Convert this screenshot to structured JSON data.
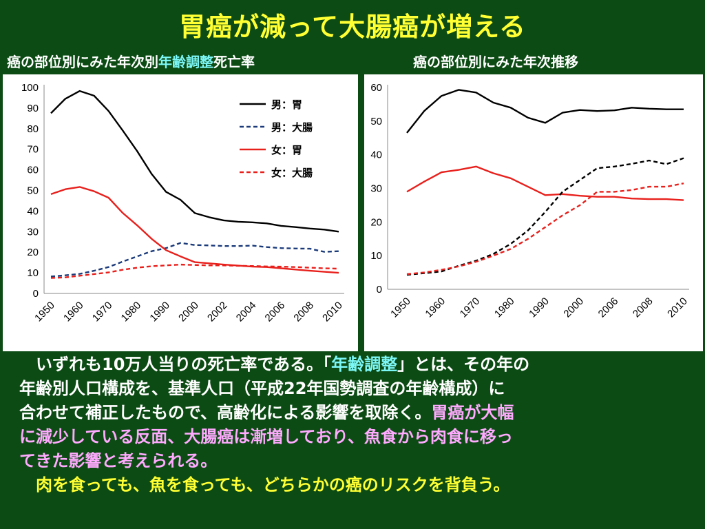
{
  "title": "胃癌が減って大腸癌が増える",
  "subtitle_left": {
    "prefix": "癌の部位別にみた年次別",
    "highlight": "年齢調整",
    "suffix": "死亡率"
  },
  "subtitle_right": "癌の部位別にみた年次推移",
  "body": {
    "line1": {
      "indent": "　",
      "a": "いずれも10万人当りの死亡率である。「",
      "b": "年齢調整",
      "c": "」とは、その年の"
    },
    "line2": "年齢別人口構成を、基準人口（平成22年国勢調査の年齢構成）に",
    "line3": {
      "a": "合わせて補正したもので、高齢化による影響を取除く。",
      "b": "胃癌が大幅"
    },
    "line4": "に減少している反面、大腸癌は漸増しており、魚食から肉食に移っ",
    "line5": "てきた影響と考えられる。",
    "line6": "　肉を食っても、魚を食っても、どちらかの癌のリスクを背負う。"
  },
  "colors": {
    "male": "#000000",
    "female": "#e8201c"
  },
  "chart_data": [
    {
      "type": "line",
      "x": [
        "1950",
        "1955",
        "1960",
        "1965",
        "1970",
        "1975",
        "1980",
        "1985",
        "1990",
        "1995",
        "2000",
        "2001",
        "2002",
        "2003",
        "2004",
        "2005",
        "2006",
        "2007",
        "2008",
        "2009",
        "2010"
      ],
      "xticks": [
        "1950",
        "1960",
        "1970",
        "1980",
        "1990",
        "2000",
        "2002",
        "2004",
        "2006",
        "2008",
        "2010"
      ],
      "ylim": [
        0,
        100
      ],
      "yticks": [
        0,
        10,
        20,
        30,
        40,
        50,
        60,
        70,
        80,
        90,
        100
      ],
      "legend": "top-right",
      "grid": false,
      "series": [
        {
          "name": "男：胃",
          "color": "#000000",
          "dash": false,
          "values": [
            87.5,
            94.5,
            98.3,
            96,
            88.6,
            79,
            69,
            58,
            49.3,
            45.5,
            39,
            37,
            35.5,
            34.8,
            34.5,
            34,
            32.8,
            32.2,
            31.5,
            31,
            30
          ]
        },
        {
          "name": "男：大腸",
          "color": "#1a3a7a",
          "dash": true,
          "values": [
            8.2,
            8.8,
            9.5,
            11,
            12.8,
            15.5,
            18,
            20.5,
            22,
            24.5,
            23.5,
            23.3,
            23,
            23,
            23.2,
            22.5,
            22,
            21.8,
            21.7,
            20.2,
            20.5
          ]
        },
        {
          "name": "女：胃",
          "color": "#e8201c",
          "dash": false,
          "values": [
            48.2,
            50.6,
            51.7,
            49.6,
            46.5,
            39,
            33,
            26.5,
            21,
            18,
            15.2,
            14.6,
            14,
            13.5,
            13,
            12.8,
            12.2,
            11.6,
            11,
            10.5,
            10
          ]
        },
        {
          "name": "女：大腸",
          "color": "#e8201c",
          "dash": true,
          "values": [
            7.5,
            7.8,
            8.6,
            9.4,
            10.2,
            11.5,
            12.5,
            13.2,
            13.6,
            14,
            13.8,
            13.6,
            13.6,
            13.4,
            13.3,
            13.1,
            13,
            12.8,
            12.5,
            12.2,
            12
          ]
        }
      ]
    },
    {
      "type": "line",
      "x": [
        "1950",
        "1955",
        "1960",
        "1965",
        "1970",
        "1975",
        "1980",
        "1985",
        "1990",
        "1995",
        "2000",
        "2003",
        "2006",
        "2007",
        "2008",
        "2009",
        "2010"
      ],
      "xticks": [
        "1950",
        "1960",
        "1970",
        "1980",
        "1990",
        "2000",
        "2006",
        "2008",
        "2010"
      ],
      "ylim": [
        0,
        60
      ],
      "yticks": [
        0,
        10,
        20,
        30,
        40,
        50,
        60
      ],
      "grid": false,
      "series": [
        {
          "color": "#000000",
          "dash": false,
          "values": [
            46.5,
            53,
            57.5,
            59.3,
            58.5,
            55.5,
            54,
            51,
            49.5,
            52.5,
            53.3,
            53,
            53.2,
            54,
            53.7,
            53.5,
            53.5
          ]
        },
        {
          "color": "#e8201c",
          "dash": false,
          "values": [
            29,
            32,
            34.8,
            35.5,
            36.5,
            34.5,
            33,
            30.5,
            28,
            28.3,
            27.8,
            27.5,
            27.5,
            27,
            26.8,
            26.8,
            26.5
          ]
        },
        {
          "color": "#000000",
          "dash": true,
          "values": [
            4.3,
            4.8,
            5.3,
            7,
            8.5,
            10.5,
            13.5,
            17.5,
            23,
            29,
            32.5,
            36,
            36.5,
            37.3,
            38.3,
            37.2,
            39
          ]
        },
        {
          "color": "#e8201c",
          "dash": true,
          "values": [
            4.5,
            5,
            5.8,
            6.8,
            8.2,
            10,
            12,
            15,
            18.5,
            22,
            25,
            29,
            29,
            29.5,
            30.5,
            30.5,
            31.5
          ]
        }
      ]
    }
  ]
}
